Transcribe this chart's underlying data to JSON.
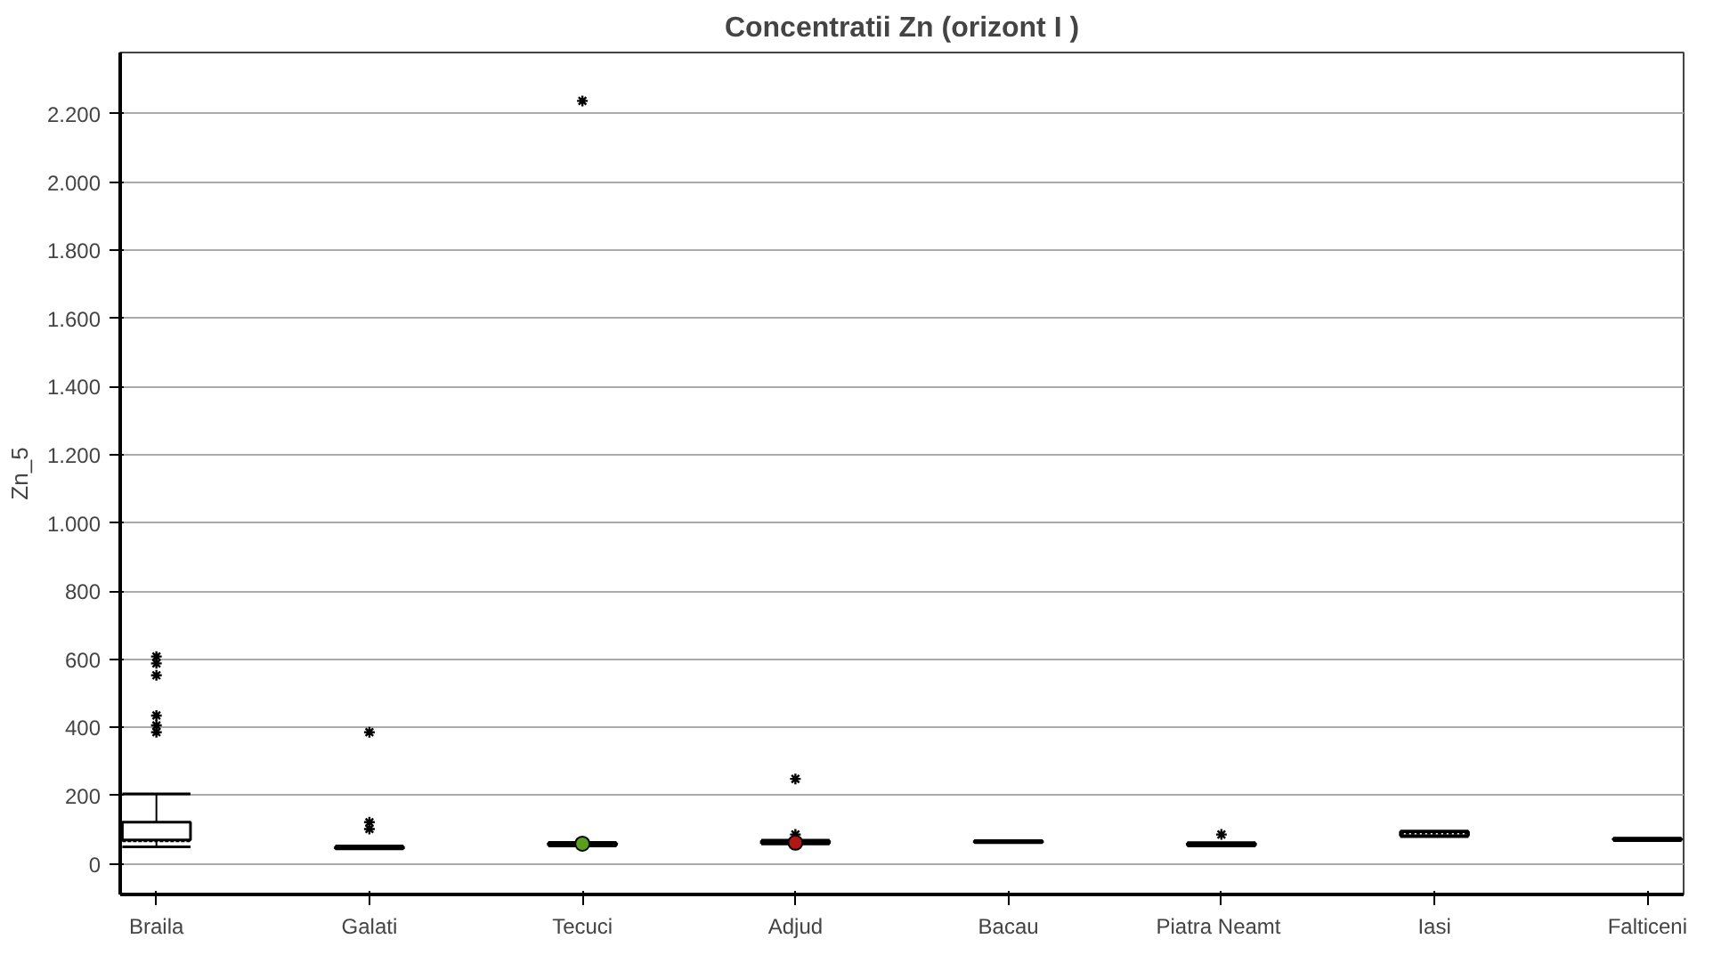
{
  "chart_data": {
    "type": "box",
    "title": "Concentratii Zn (orizont I )",
    "ylabel": "Zn_5",
    "categories": [
      "Braila",
      "Galati",
      "Tecuci",
      "Adjud",
      "Bacau",
      "Piatra  Neamt",
      "Iasi",
      "Falticeni"
    ],
    "boxes": [
      {
        "low": 50,
        "q1": 70,
        "median": 66,
        "q3": 122,
        "high": 205,
        "outliers": [
          608,
          588,
          553,
          435,
          406,
          386
        ]
      },
      {
        "low": 44,
        "q1": 45,
        "median": 47,
        "q3": 50,
        "high": 52,
        "outliers": [
          122,
          102,
          386
        ]
      },
      {
        "low": 52,
        "q1": 55,
        "median": 58,
        "q3": 61,
        "high": 63,
        "outliers": [
          2238
        ]
      },
      {
        "low": 58,
        "q1": 60,
        "median": 64,
        "q3": 67,
        "high": 69,
        "outliers": [
          249,
          86
        ]
      },
      {
        "low": 62,
        "q1": 63,
        "median": 65,
        "q3": 67,
        "high": 68
      },
      {
        "low": 52,
        "q1": 54,
        "median": 57,
        "q3": 60,
        "high": 62,
        "outliers": [
          86
        ]
      },
      {
        "low": 80,
        "q1": 82,
        "median": 88,
        "q3": 94,
        "high": 96
      },
      {
        "low": 68,
        "q1": 70,
        "median": 72,
        "q3": 74,
        "high": 75
      }
    ],
    "ylim": [
      -90,
      2380
    ],
    "yticks": [
      0,
      200,
      400,
      600,
      800,
      {
        "value": 1000,
        "label": "1.000"
      },
      {
        "value": 1200,
        "label": "1.200"
      },
      {
        "value": 1400,
        "label": "1.400"
      },
      {
        "value": 1600,
        "label": "1.600"
      },
      {
        "value": 1800,
        "label": "1.800"
      },
      {
        "value": 2000,
        "label": "2.000"
      },
      {
        "value": 2200,
        "label": "2.200"
      }
    ],
    "series": [
      {
        "type": "scatter",
        "color": "#5a9e1e",
        "x": [
          "Tecuci"
        ],
        "values": [
          59
        ],
        "marker": "circle"
      },
      {
        "type": "scatter",
        "color": "#b01818",
        "x": [
          "Adjud"
        ],
        "values": [
          62
        ],
        "marker": "circle"
      }
    ],
    "grid": "y",
    "marker": "star"
  }
}
